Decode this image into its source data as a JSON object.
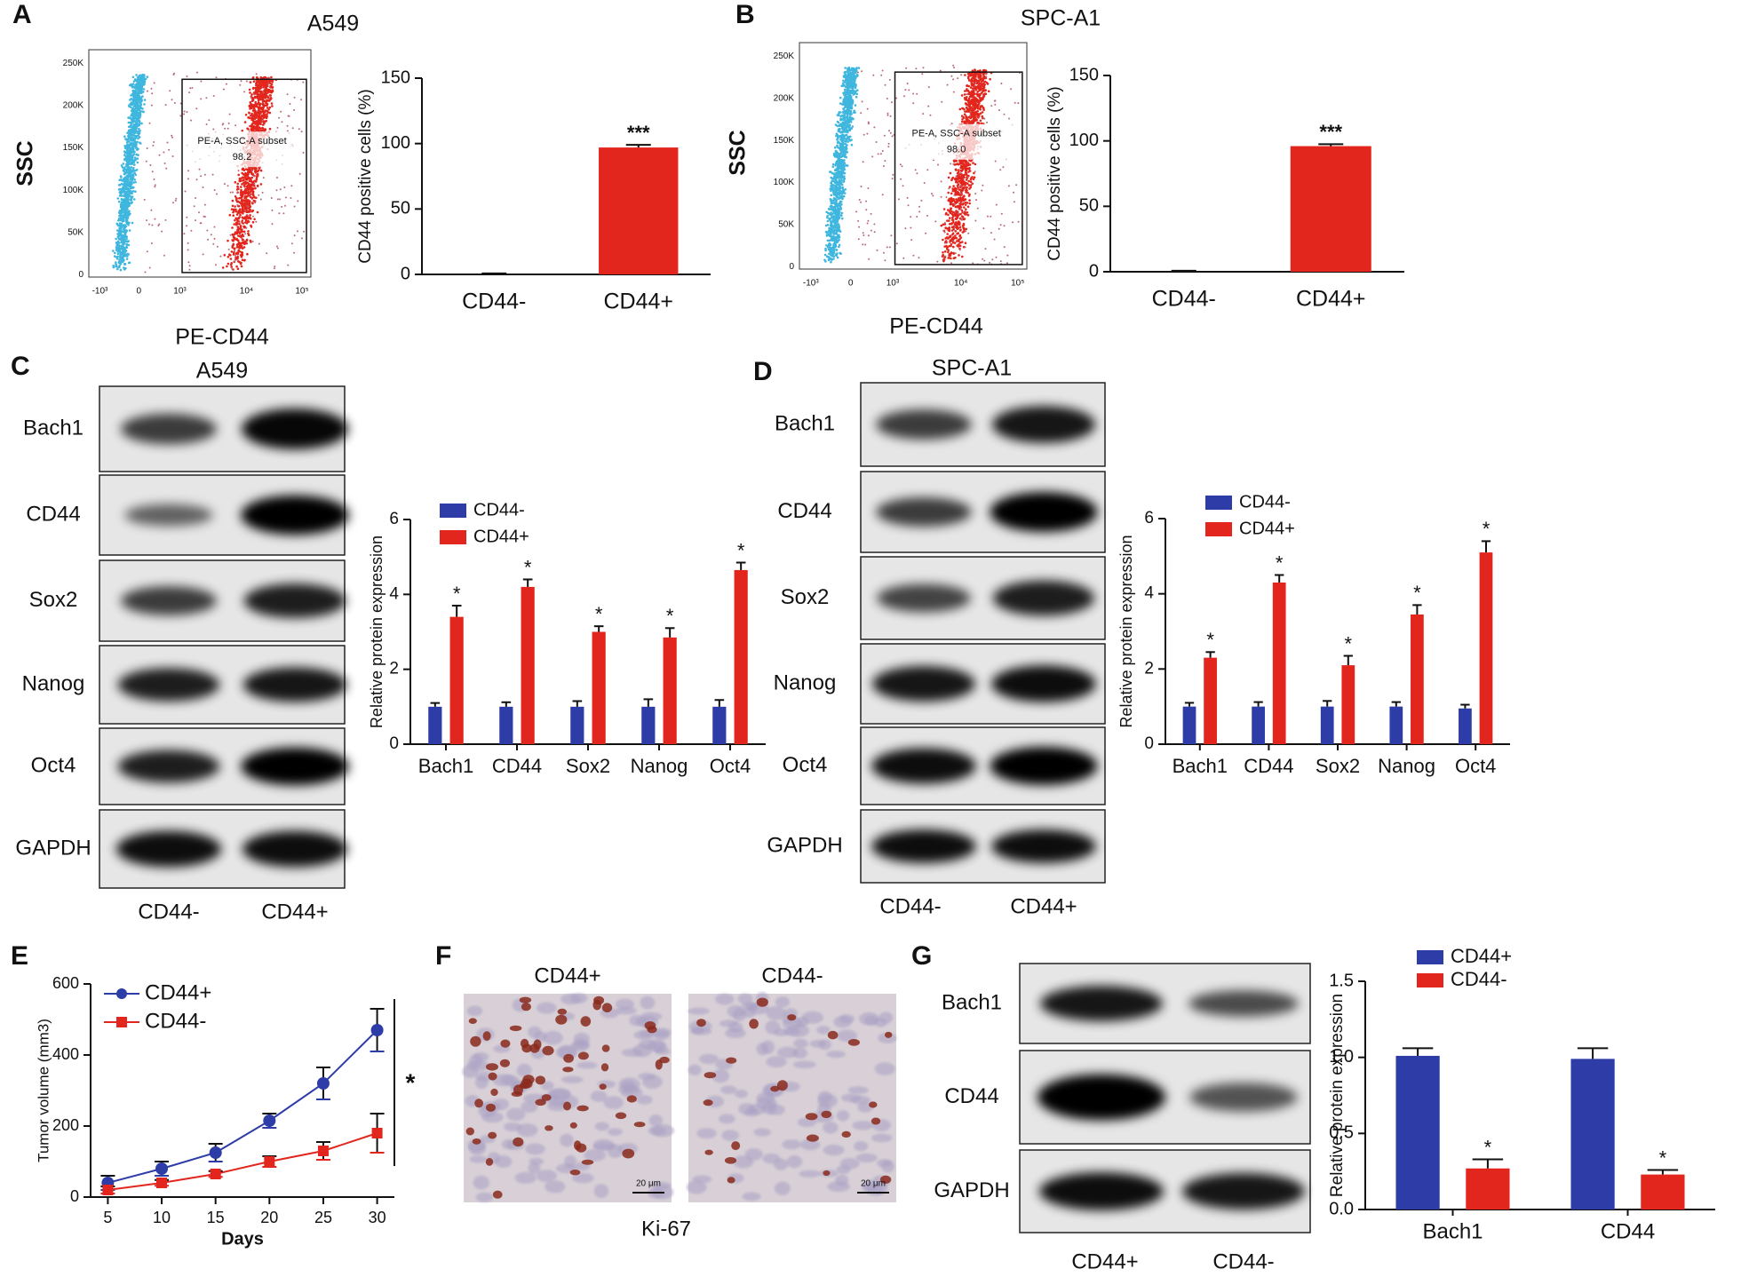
{
  "panel_labels": [
    "A",
    "B",
    "C",
    "D",
    "E",
    "F",
    "G"
  ],
  "flow": [
    {
      "title": "A549",
      "x_label": "PE-CD44",
      "y_label": "SSC",
      "yticks": [
        "250K",
        "200K",
        "150K",
        "100K",
        "50K",
        "0"
      ],
      "xticks": [
        "-10³",
        "0",
        "10³",
        "10⁴",
        "10⁵"
      ],
      "gate_label": "PE-A, SSC-A subset",
      "gate_value": "98.2"
    },
    {
      "title": "SPC-A1",
      "x_label": "PE-CD44",
      "y_label": "SSC",
      "yticks": [
        "250K",
        "200K",
        "150K",
        "100K",
        "50K",
        "0"
      ],
      "xticks": [
        "-10³",
        "0",
        "10³",
        "10⁴",
        "10⁵"
      ],
      "gate_label": "PE-A, SSC-A subset",
      "gate_value": "98.0"
    }
  ],
  "blots": [
    {
      "title": "A549",
      "rows": [
        "Bach1",
        "CD44",
        "Sox2",
        "Nanog",
        "Oct4",
        "GAPDH"
      ],
      "lanes": [
        "CD44-",
        "CD44+"
      ]
    },
    {
      "title": "SPC-A1",
      "rows": [
        "Bach1",
        "CD44",
        "Sox2",
        "Nanog",
        "Oct4",
        "GAPDH"
      ],
      "lanes": [
        "CD44-",
        "CD44+"
      ]
    },
    {
      "rows": [
        "Bach1",
        "CD44",
        "GAPDH"
      ],
      "lanes": [
        "CD44+",
        "CD44-"
      ]
    }
  ],
  "ihc": {
    "lanes": [
      "CD44+",
      "CD44-"
    ],
    "stain": "Ki-67",
    "scale_bar": "20 μm"
  },
  "chart_data": [
    {
      "type": "bar",
      "y_label": "CD44 positive cells (%)",
      "categories": [
        "CD44-",
        "CD44+"
      ],
      "values": [
        0.5,
        97
      ],
      "errors": [
        0.3,
        2
      ],
      "colors": [
        "#111111",
        "#e3261d"
      ],
      "significance": [
        null,
        "***"
      ],
      "ylim": [
        0,
        150
      ],
      "yticks": [
        0,
        50,
        100,
        150
      ]
    },
    {
      "type": "bar",
      "y_label": "CD44 positive cells (%)",
      "categories": [
        "CD44-",
        "CD44+"
      ],
      "values": [
        0.5,
        96
      ],
      "errors": [
        0.3,
        1.5
      ],
      "colors": [
        "#111111",
        "#e3261d"
      ],
      "significance": [
        null,
        "***"
      ],
      "ylim": [
        0,
        150
      ],
      "yticks": [
        0,
        50,
        100,
        150
      ]
    },
    {
      "type": "grouped_bar",
      "y_label": "Relative protein expression",
      "categories": [
        "Bach1",
        "CD44",
        "Sox2",
        "Nanog",
        "Oct4"
      ],
      "legend": "upper left",
      "series": [
        {
          "name": "CD44-",
          "color": "#2e3ca8",
          "values": [
            1,
            1,
            1,
            1,
            1
          ],
          "errors": [
            0.1,
            0.12,
            0.15,
            0.2,
            0.18
          ],
          "significance": [
            null,
            null,
            null,
            null,
            null
          ]
        },
        {
          "name": "CD44+",
          "color": "#e3261d",
          "values": [
            3.4,
            4.2,
            3.0,
            2.85,
            4.65
          ],
          "errors": [
            0.3,
            0.2,
            0.15,
            0.25,
            0.2
          ],
          "significance": [
            "*",
            "*",
            "*",
            "*",
            "*"
          ]
        }
      ],
      "ylim": [
        0,
        6
      ],
      "yticks": [
        0,
        2,
        4,
        6
      ]
    },
    {
      "type": "grouped_bar",
      "y_label": "Relative protein expression",
      "categories": [
        "Bach1",
        "CD44",
        "Sox2",
        "Nanog",
        "Oct4"
      ],
      "legend": "upper left",
      "series": [
        {
          "name": "CD44-",
          "color": "#2e3ca8",
          "values": [
            1,
            1,
            1,
            1,
            0.95
          ],
          "errors": [
            0.1,
            0.12,
            0.15,
            0.12,
            0.1
          ],
          "significance": [
            null,
            null,
            null,
            null,
            null
          ]
        },
        {
          "name": "CD44+",
          "color": "#e3261d",
          "values": [
            2.3,
            4.3,
            2.1,
            3.45,
            5.1
          ],
          "errors": [
            0.15,
            0.2,
            0.25,
            0.25,
            0.3
          ],
          "significance": [
            "*",
            "*",
            "*",
            "*",
            "*"
          ]
        }
      ],
      "ylim": [
        0,
        6
      ],
      "yticks": [
        0,
        2,
        4,
        6
      ]
    },
    {
      "type": "line",
      "x_label": "Days",
      "y_label": "Tumor volume (mm3)",
      "x": [
        5,
        10,
        15,
        20,
        25,
        30
      ],
      "legend": "upper left",
      "significance": "*",
      "series": [
        {
          "name": "CD44+",
          "color": "#2e3ca8",
          "marker": "circle",
          "values": [
            40,
            80,
            125,
            215,
            320,
            470
          ],
          "errors": [
            20,
            20,
            25,
            20,
            45,
            60
          ]
        },
        {
          "name": "CD44-",
          "color": "#e3261d",
          "marker": "square",
          "values": [
            20,
            40,
            65,
            100,
            130,
            180
          ],
          "errors": [
            10,
            8,
            8,
            15,
            25,
            55
          ]
        }
      ],
      "xlim": [
        3.4,
        31.6
      ],
      "xticks": [
        5,
        10,
        15,
        20,
        25,
        30
      ],
      "ylim": [
        0,
        600
      ],
      "yticks": [
        0,
        200,
        400,
        600
      ]
    },
    {
      "type": "grouped_bar",
      "y_label": "Relative protein expression",
      "categories": [
        "Bach1",
        "CD44"
      ],
      "legend": "upper right",
      "series": [
        {
          "name": "CD44+",
          "color": "#2e3ca8",
          "values": [
            1.01,
            0.99
          ],
          "errors": [
            0.05,
            0.07
          ],
          "significance": [
            null,
            null
          ]
        },
        {
          "name": "CD44-",
          "color": "#e3261d",
          "values": [
            0.27,
            0.23
          ],
          "errors": [
            0.06,
            0.03
          ],
          "significance": [
            "*",
            "*"
          ]
        }
      ],
      "ylim": [
        0,
        1.5
      ],
      "yticks": [
        {
          "value": 0,
          "label": "0.0"
        },
        0.5,
        {
          "value": 1,
          "label": "1.0"
        },
        1.5
      ]
    }
  ]
}
